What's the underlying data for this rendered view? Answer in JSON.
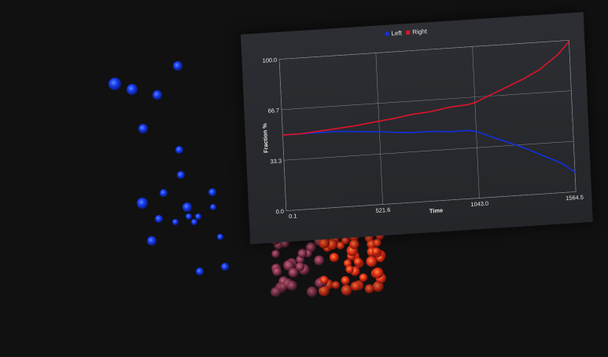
{
  "colors": {
    "background": "#111112",
    "left_series": "#1030e0",
    "right_series": "#e0142a",
    "grid": "#8a8c90"
  },
  "legend": {
    "left_label": "Left",
    "right_label": "Right"
  },
  "chart_data": {
    "type": "line",
    "xlabel": "Time",
    "ylabel": "Fraction %",
    "xlim": [
      0.1,
      1564.5
    ],
    "ylim": [
      0,
      100
    ],
    "x_ticks": [
      "0.1",
      "521.6",
      "1043.0",
      "1564.5"
    ],
    "y_ticks": [
      "0.0",
      "33.3",
      "66.7",
      "100.0"
    ],
    "grid": true,
    "legend_position": "top-center",
    "series": [
      {
        "name": "Left",
        "x": [
          0.1,
          100,
          200,
          300,
          400,
          521.6,
          600,
          700,
          800,
          900,
          1000,
          1043,
          1100,
          1200,
          1300,
          1400,
          1500,
          1564.5
        ],
        "y": [
          50,
          50,
          50,
          50,
          49,
          48,
          47,
          46,
          46,
          45,
          45,
          44,
          41,
          36,
          31,
          25,
          19,
          13
        ]
      },
      {
        "name": "Right",
        "x": [
          0.1,
          100,
          200,
          300,
          400,
          521.6,
          600,
          700,
          800,
          900,
          1000,
          1043,
          1100,
          1200,
          1300,
          1400,
          1500,
          1564.5
        ],
        "y": [
          50,
          50,
          51,
          52,
          53,
          55,
          56,
          58,
          59,
          61,
          62,
          63,
          66,
          71,
          76,
          82,
          91,
          99
        ]
      }
    ]
  }
}
